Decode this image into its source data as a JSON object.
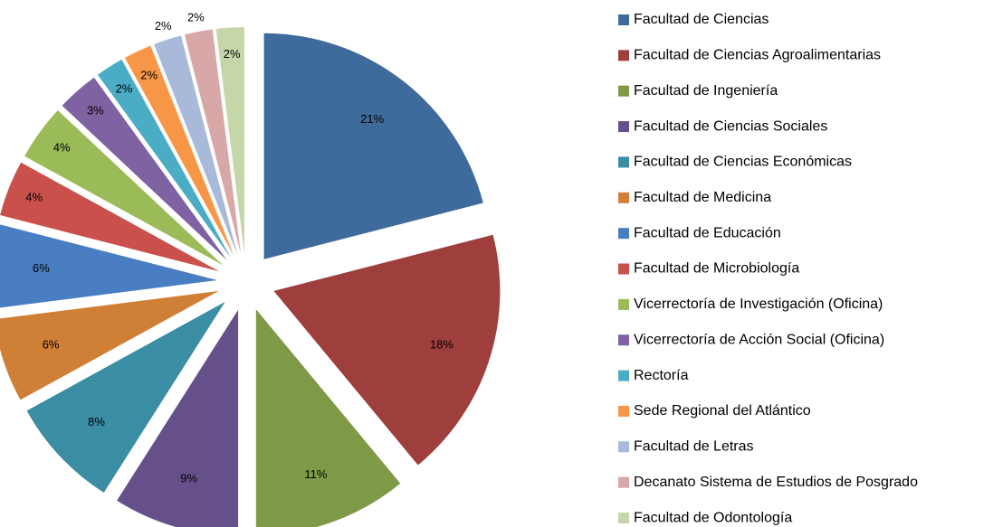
{
  "chart_data": {
    "type": "pie",
    "categories": [
      "Facultad de Ciencias",
      "Facultad de Ciencias Agroalimentarias",
      "Facultad de Ingeniería",
      "Facultad de Ciencias Sociales",
      "Facultad de Ciencias Económicas",
      "Facultad de Medicina",
      "Facultad de Educación",
      "Facultad de Microbiología",
      "Vicerrectoría de Investigación (Oficina)",
      "Vicerrectoría de Acción Social (Oficina)",
      "Rectoría",
      "Sede Regional del Atlántico",
      "Facultad de Letras",
      "Decanato Sistema de Estudios de Posgrado",
      "Facultad de Odontología"
    ],
    "values": [
      21,
      18,
      11,
      9,
      8,
      6,
      6,
      4,
      4,
      3,
      2,
      2,
      2,
      2,
      2
    ],
    "value_labels": [
      "21%",
      "18%",
      "11%",
      "9%",
      "8%",
      "6%",
      "6%",
      "4%",
      "4%",
      "3%",
      "2%",
      "2%",
      "2%",
      "2%",
      "2%"
    ],
    "colors": [
      "#3f6a9c",
      "#9e3f3d",
      "#7f9a47",
      "#66508a",
      "#3a8da3",
      "#d07f36",
      "#4a7ec2",
      "#c9504b",
      "#9bbb59",
      "#7e62a1",
      "#4bacc6",
      "#f79646",
      "#a9b9da",
      "#d8a8a8",
      "#c5d6a8"
    ],
    "legend": "right"
  }
}
